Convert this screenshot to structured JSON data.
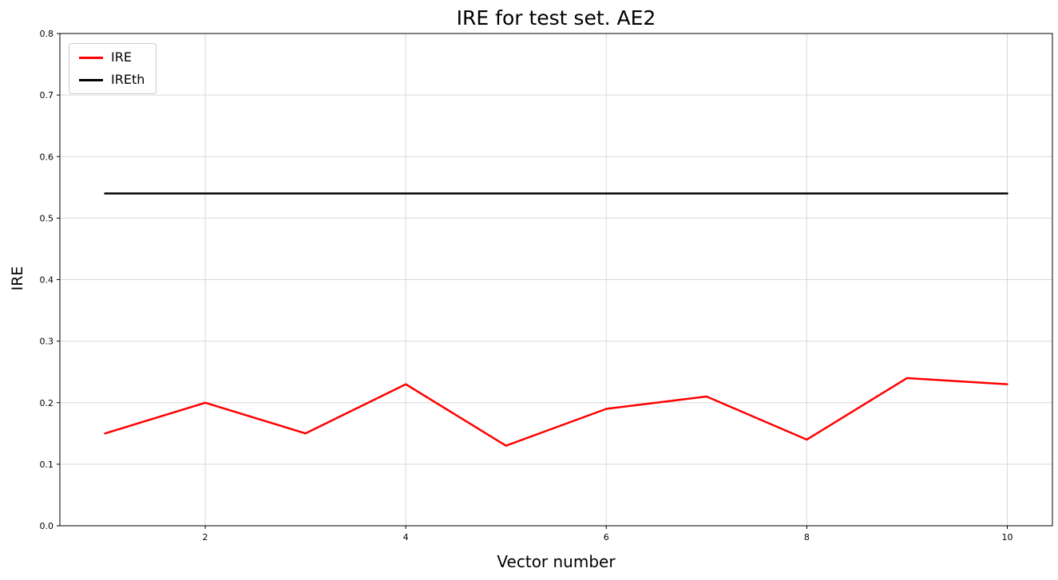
{
  "chart_data": {
    "type": "line",
    "title": "IRE for test set. AE2",
    "xlabel": "Vector number",
    "ylabel": "IRE",
    "x": [
      1,
      2,
      3,
      4,
      5,
      6,
      7,
      8,
      9,
      10
    ],
    "series": [
      {
        "name": "IRE",
        "color": "#ff0000",
        "values": [
          0.15,
          0.2,
          0.15,
          0.23,
          0.13,
          0.19,
          0.21,
          0.14,
          0.24,
          0.23
        ]
      },
      {
        "name": "IREth",
        "color": "#000000",
        "values": [
          0.54,
          0.54,
          0.54,
          0.54,
          0.54,
          0.54,
          0.54,
          0.54,
          0.54,
          0.54
        ]
      }
    ],
    "xlim": [
      0.55,
      10.45
    ],
    "ylim": [
      0.0,
      0.8
    ],
    "xticks": [
      2,
      4,
      6,
      8,
      10
    ],
    "yticks": [
      0.0,
      0.1,
      0.2,
      0.3,
      0.4,
      0.5,
      0.6,
      0.7,
      0.8
    ],
    "grid": true,
    "grid_color": "#d9d9d9",
    "axis_color": "#000000",
    "tick_label_color": "#000000",
    "legend_position": "upper-left"
  }
}
